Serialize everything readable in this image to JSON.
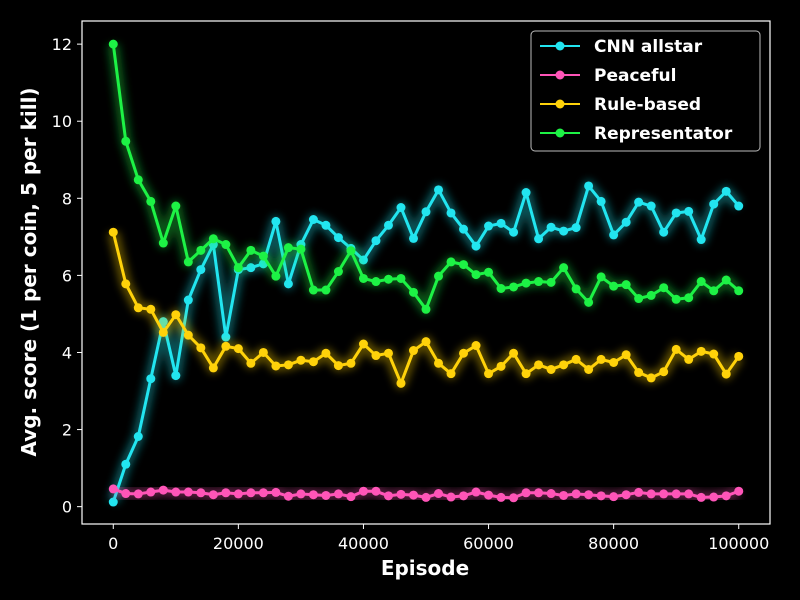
{
  "chart_data": {
    "type": "line",
    "title": "",
    "xlabel": "Episode",
    "ylabel": "Avg. score (1 per coin, 5 per kill)",
    "xlim": [
      -5000,
      105000
    ],
    "ylim": [
      -0.45,
      12.6
    ],
    "xticks": [
      0,
      20000,
      40000,
      60000,
      80000,
      100000
    ],
    "xtick_labels": [
      "0",
      "20000",
      "40000",
      "60000",
      "80000",
      "100000"
    ],
    "yticks": [
      0,
      2,
      4,
      6,
      8,
      10,
      12
    ],
    "ytick_labels": [
      "0",
      "2",
      "4",
      "6",
      "8",
      "10",
      "12"
    ],
    "grid": false,
    "legend_position": "top-right",
    "x": [
      0,
      2000,
      4000,
      6000,
      8000,
      10000,
      12000,
      14000,
      16000,
      18000,
      20000,
      22000,
      24000,
      26000,
      28000,
      30000,
      32000,
      34000,
      36000,
      38000,
      40000,
      42000,
      44000,
      46000,
      48000,
      50000,
      52000,
      54000,
      56000,
      58000,
      60000,
      62000,
      64000,
      66000,
      68000,
      70000,
      72000,
      74000,
      76000,
      78000,
      80000,
      82000,
      84000,
      86000,
      88000,
      90000,
      92000,
      94000,
      96000,
      98000,
      100000
    ],
    "series": [
      {
        "name": "CNN allstar",
        "color": "#22e5f0",
        "values": [
          0.12,
          1.1,
          1.82,
          3.32,
          4.8,
          3.4,
          5.36,
          6.15,
          6.8,
          4.4,
          6.15,
          6.2,
          6.3,
          7.4,
          5.78,
          6.8,
          7.45,
          7.3,
          6.98,
          6.7,
          6.4,
          6.9,
          7.3,
          7.76,
          6.96,
          7.65,
          8.22,
          7.62,
          7.2,
          6.76,
          7.28,
          7.35,
          7.12,
          8.15,
          6.95,
          7.25,
          7.15,
          7.24,
          8.32,
          7.92,
          7.05,
          7.38,
          7.9,
          7.8,
          7.12,
          7.62,
          7.66,
          6.93,
          7.85,
          8.18,
          7.8
        ]
      },
      {
        "name": "Peaceful",
        "color": "#ff55b8",
        "values": [
          0.46,
          0.34,
          0.33,
          0.38,
          0.43,
          0.38,
          0.38,
          0.36,
          0.31,
          0.36,
          0.33,
          0.36,
          0.36,
          0.37,
          0.27,
          0.33,
          0.31,
          0.29,
          0.33,
          0.26,
          0.4,
          0.4,
          0.28,
          0.32,
          0.3,
          0.24,
          0.34,
          0.25,
          0.28,
          0.38,
          0.3,
          0.24,
          0.23,
          0.36,
          0.36,
          0.34,
          0.29,
          0.33,
          0.31,
          0.28,
          0.26,
          0.31,
          0.37,
          0.33,
          0.33,
          0.33,
          0.33,
          0.24,
          0.25,
          0.28,
          0.4
        ]
      },
      {
        "name": "Rule-based",
        "color": "#ffd20a",
        "values": [
          7.12,
          5.78,
          5.16,
          5.12,
          4.52,
          4.98,
          4.45,
          4.12,
          3.6,
          4.16,
          4.1,
          3.72,
          4.0,
          3.65,
          3.68,
          3.8,
          3.76,
          3.98,
          3.66,
          3.72,
          4.22,
          3.92,
          3.98,
          3.2,
          4.05,
          4.28,
          3.72,
          3.45,
          3.98,
          4.18,
          3.45,
          3.64,
          3.98,
          3.45,
          3.68,
          3.56,
          3.68,
          3.82,
          3.56,
          3.82,
          3.74,
          3.94,
          3.48,
          3.34,
          3.5,
          4.08,
          3.82,
          4.03,
          3.96,
          3.44,
          3.9
        ]
      },
      {
        "name": "Representator",
        "color": "#1df245",
        "values": [
          12.0,
          9.48,
          8.48,
          7.92,
          6.84,
          7.8,
          6.35,
          6.65,
          6.95,
          6.8,
          6.2,
          6.65,
          6.5,
          5.98,
          6.72,
          6.68,
          5.62,
          5.62,
          6.1,
          6.64,
          5.92,
          5.84,
          5.9,
          5.92,
          5.56,
          5.12,
          5.98,
          6.35,
          6.28,
          6.02,
          6.08,
          5.66,
          5.7,
          5.8,
          5.84,
          5.82,
          6.2,
          5.65,
          5.3,
          5.96,
          5.72,
          5.76,
          5.4,
          5.48,
          5.68,
          5.38,
          5.42,
          5.84,
          5.6,
          5.88,
          5.6
        ]
      }
    ]
  }
}
